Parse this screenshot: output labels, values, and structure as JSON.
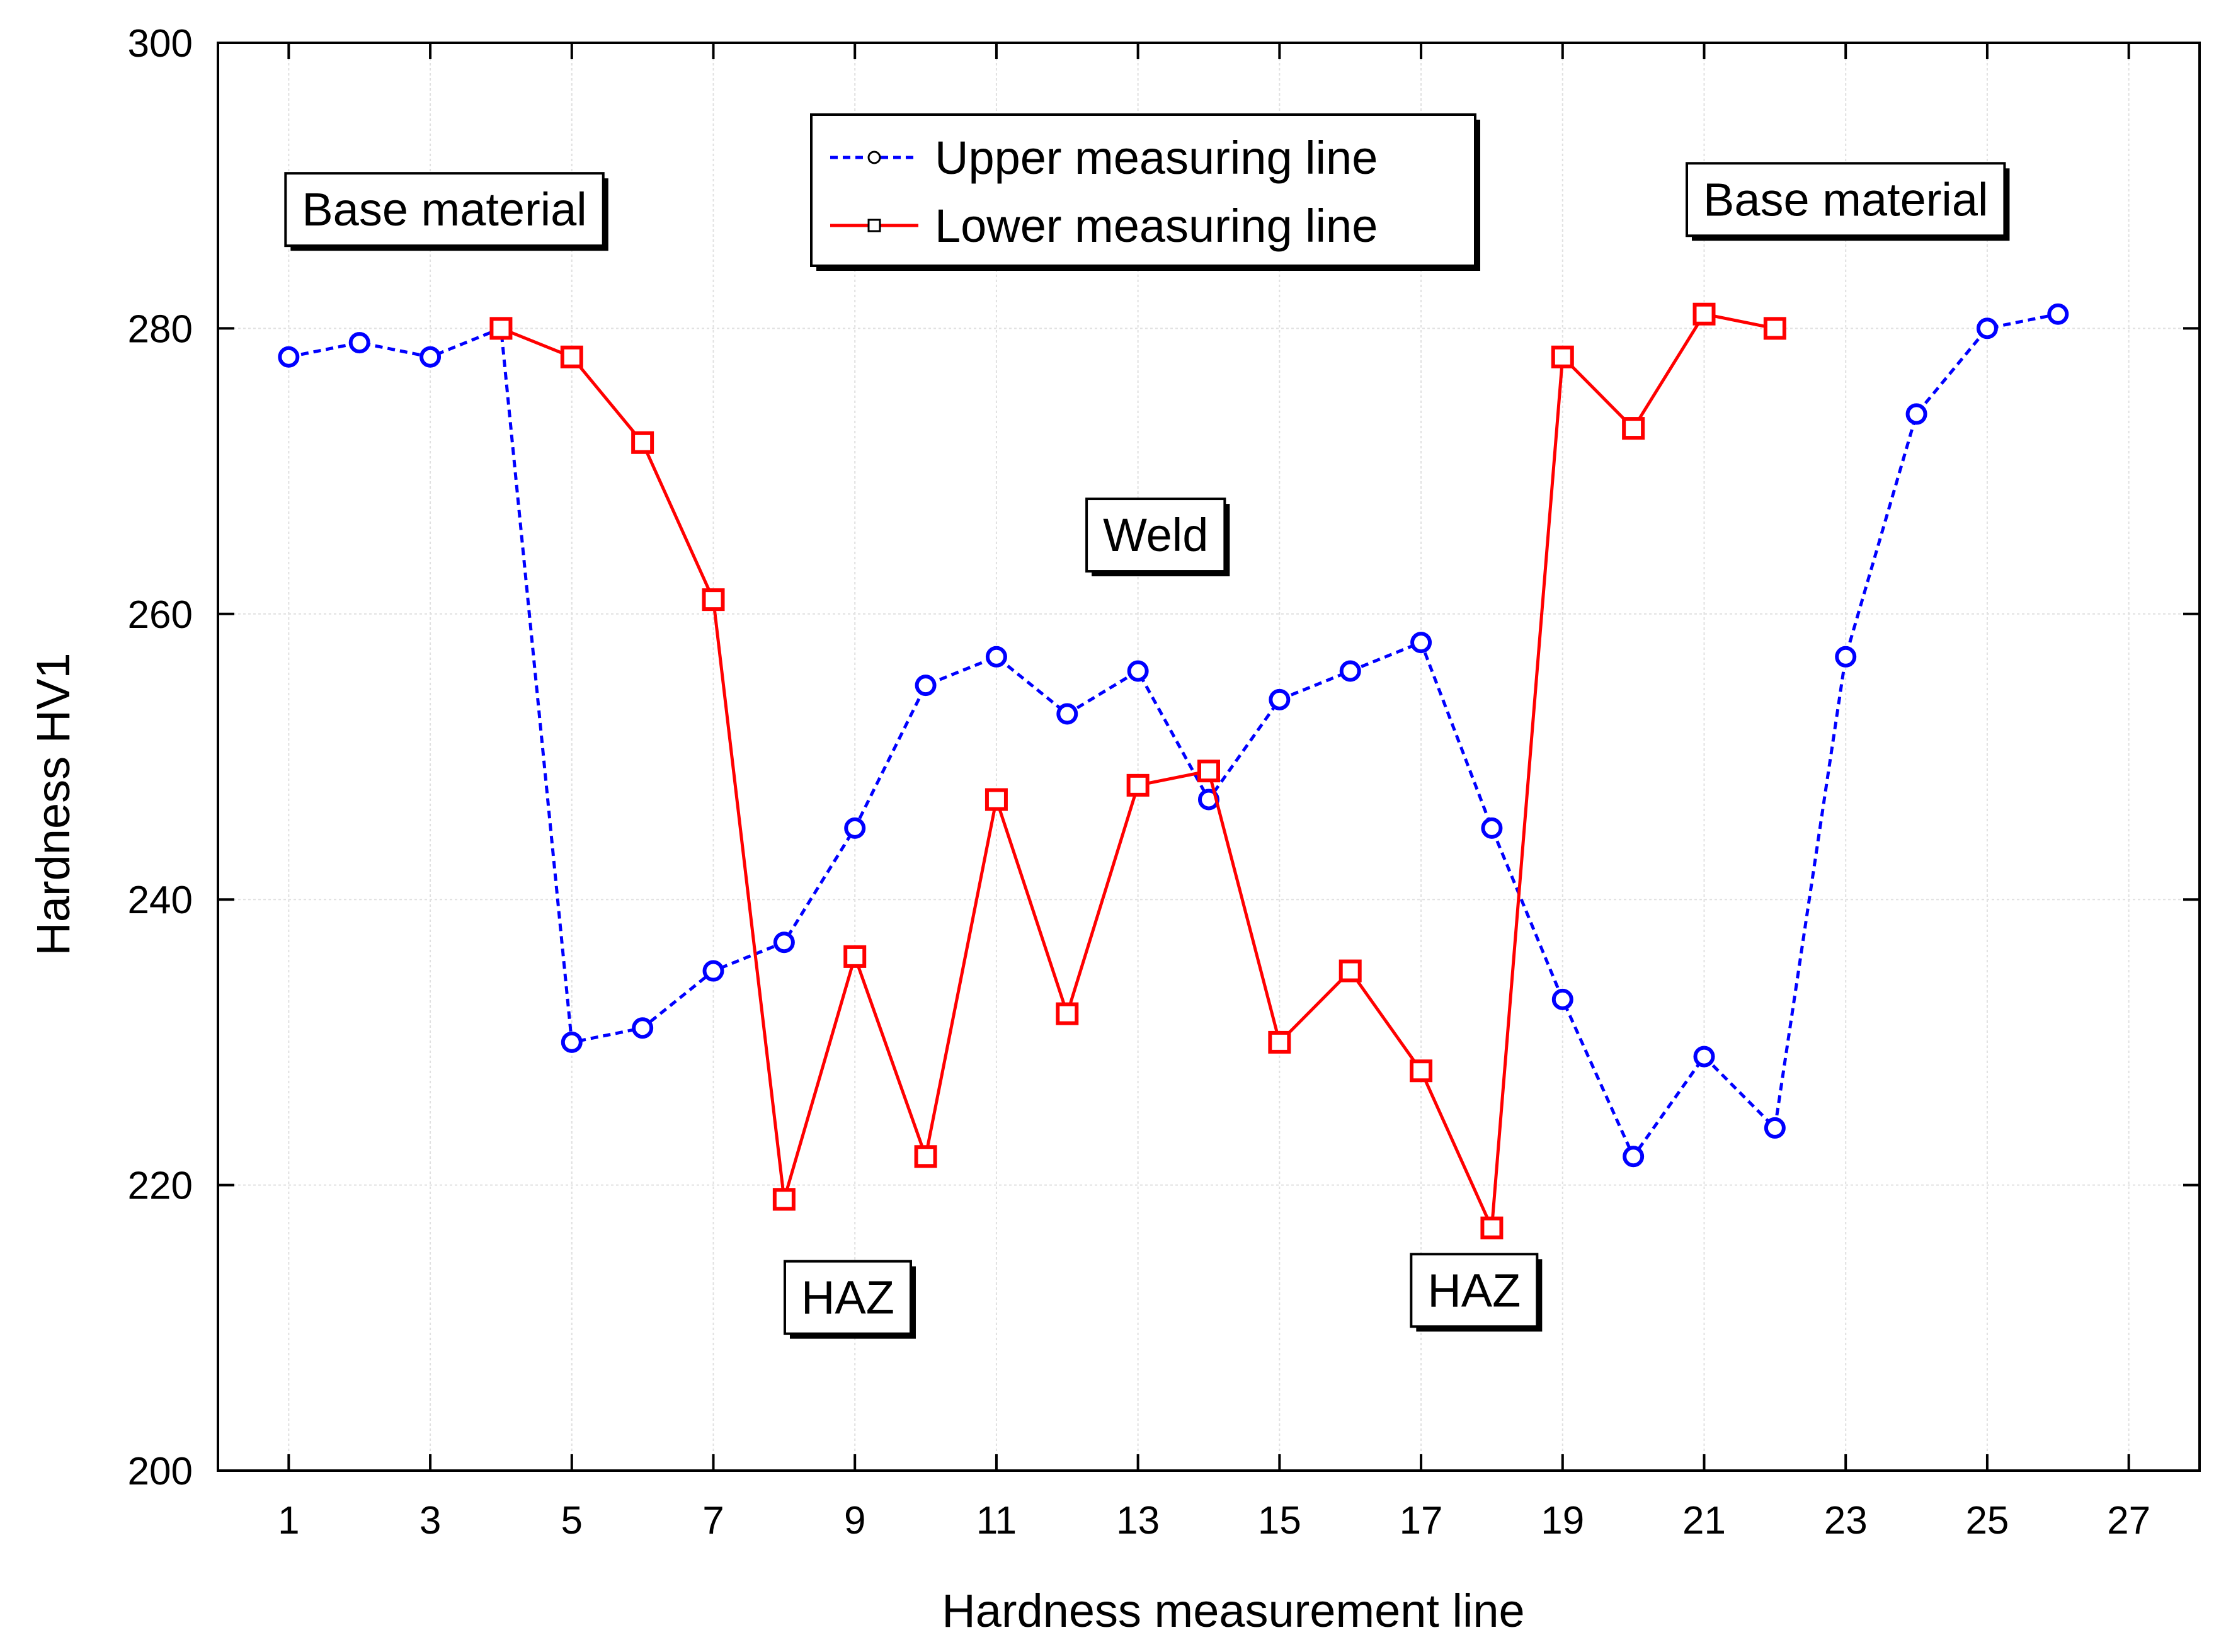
{
  "chart_data": {
    "type": "line",
    "title": "",
    "xlabel": "Hardness measurement line",
    "ylabel": "Hardness HV1",
    "xlim": [
      0,
      28
    ],
    "ylim": [
      200,
      300
    ],
    "x_ticks": [
      1,
      3,
      5,
      7,
      9,
      11,
      13,
      15,
      17,
      19,
      21,
      23,
      25,
      27
    ],
    "y_ticks": [
      200,
      220,
      240,
      260,
      280,
      300
    ],
    "grid": true,
    "series": [
      {
        "name": "Upper measuring line",
        "color": "#0000ff",
        "line_style": "dashed",
        "marker": "circle",
        "x": [
          1,
          2,
          3,
          4,
          5,
          6,
          7,
          8,
          9,
          10,
          11,
          12,
          13,
          14,
          15,
          16,
          17,
          18,
          19,
          20,
          21,
          22,
          23,
          24,
          25,
          26
        ],
        "values": [
          278,
          279,
          278,
          280,
          230,
          231,
          235,
          237,
          245,
          255,
          257,
          253,
          256,
          247,
          254,
          256,
          258,
          245,
          233,
          222,
          229,
          224,
          257,
          274,
          280,
          281
        ]
      },
      {
        "name": "Lower measuring line",
        "color": "#ff0000",
        "line_style": "solid",
        "marker": "square",
        "x": [
          4,
          5,
          6,
          7,
          8,
          9,
          10,
          11,
          12,
          13,
          14,
          15,
          16,
          17,
          18,
          19,
          20,
          21,
          22
        ],
        "values": [
          280,
          278,
          272,
          261,
          219,
          236,
          222,
          247,
          232,
          248,
          249,
          230,
          235,
          228,
          217,
          278,
          273,
          281,
          280
        ]
      }
    ],
    "legend_position": "top-center",
    "annotations": [
      {
        "text": "Base material",
        "x": 3.2,
        "y": 287.2
      },
      {
        "text": "Base material",
        "x": 23.0,
        "y": 287.9
      },
      {
        "text": "Weld",
        "x": 13.25,
        "y": 264.4
      },
      {
        "text": "HAZ",
        "x": 8.9,
        "y": 211.0
      },
      {
        "text": "HAZ",
        "x": 17.75,
        "y": 211.5
      }
    ]
  }
}
